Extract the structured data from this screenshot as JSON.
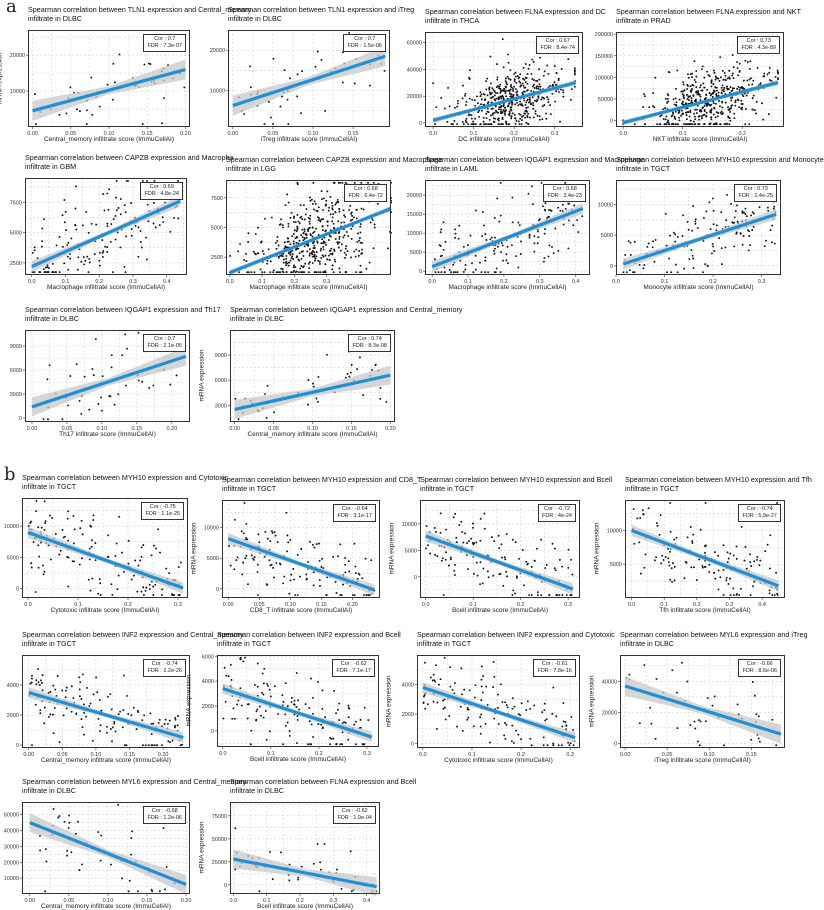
{
  "labels": {
    "a": "a",
    "b": "b"
  },
  "chart_data": [
    {
      "type": "scatter",
      "title": [
        "Spearman correlation between TLN1 expression and Central_memory",
        "infiltrate in DLBC"
      ],
      "cor": "Cor : 0.7",
      "fdr": "FDR : 7.3e-07",
      "xlabel": "Central_memory infiltrate score (ImmuCellAI)",
      "ylabel": "mRNA expression",
      "xticks": [
        0,
        0.05,
        0.1,
        0.15,
        0.2
      ],
      "xticklabels": [
        "0.00",
        "0.05",
        "0.10",
        "0.15",
        "0.20"
      ],
      "yticks": [
        10000,
        20000
      ],
      "yticklabels": [
        "10000",
        "20000"
      ],
      "xlim": [
        -0.006,
        0.206
      ],
      "ylim": [
        0,
        27000
      ],
      "fit": [
        [
          0,
          4500
        ],
        [
          0.2,
          16000
        ]
      ],
      "n": 47
    },
    {
      "type": "scatter",
      "title": [
        "Spearman correlation between TLN1 expression and iTreg",
        "infiltrate in DLBC"
      ],
      "cor": "Cor : 0.7",
      "fdr": "FDR : 1.5e-06",
      "xlabel": "iTreg infiltrate score (ImmuCellAI)",
      "ylabel": "",
      "xticks": [
        0,
        0.05,
        0.1,
        0.15
      ],
      "xticklabels": [
        "0.00",
        "0.05",
        "0.10",
        "0.15"
      ],
      "yticks": [
        10000,
        20000
      ],
      "yticklabels": [
        "10000",
        "20000"
      ],
      "xlim": [
        -0.006,
        0.196
      ],
      "ylim": [
        1000,
        25000
      ],
      "fit": [
        [
          0,
          6300
        ],
        [
          0.19,
          18500
        ]
      ],
      "n": 47
    },
    {
      "type": "scatter",
      "title": [
        "Spearman correlation between FLNA expression and DC",
        "infiltrate in THCA"
      ],
      "cor": "Cor : 0.67",
      "fdr": "FDR : 8.4e-74",
      "xlabel": "DC infiltrate score (ImmuCellAI)",
      "ylabel": "",
      "xticks": [
        0,
        0.1,
        0.2,
        0.3
      ],
      "xticklabels": [
        "0.0",
        "0.1",
        "0.2",
        "0.3"
      ],
      "yticks": [
        0,
        20000,
        40000,
        60000
      ],
      "yticklabels": [
        "0",
        "20000",
        "40000",
        "60000"
      ],
      "xlim": [
        -0.02,
        0.37
      ],
      "ylim": [
        -3000,
        68000
      ],
      "fit": [
        [
          0,
          2000
        ],
        [
          0.35,
          30000
        ]
      ],
      "n": 500
    },
    {
      "type": "scatter",
      "title": [
        "Spearman correlation between FLNA expression and NKT",
        "infiltrate in PRAD"
      ],
      "cor": "Cor : 0.73",
      "fdr": "FDR : 4.3e-89",
      "xlabel": "NKT infiltrate score (ImmuCellAI)",
      "ylabel": "",
      "xticks": [
        0,
        0.1,
        0.2
      ],
      "xticklabels": [
        "0.0",
        "0.1",
        "0.2"
      ],
      "yticks": [
        0,
        50000,
        100000,
        150000,
        200000
      ],
      "yticklabels": [
        "0",
        "50000",
        "100000",
        "150000",
        "200000"
      ],
      "xlim": [
        -0.012,
        0.27
      ],
      "ylim": [
        -15000,
        205000
      ],
      "fit": [
        [
          0,
          -5000
        ],
        [
          0.26,
          88000
        ]
      ],
      "n": 490
    },
    {
      "type": "scatter",
      "title": [
        "Spearman correlation between CAPZB expression and Macropha",
        "infiltrate in GBM"
      ],
      "cor": "Cor : 0.69",
      "fdr": "FDR : 4.8e-24",
      "xlabel": "Macrophage infiltrate score (ImmuCellAI)",
      "ylabel": "mRNA expression",
      "xticks": [
        0,
        0.1,
        0.2,
        0.3,
        0.4
      ],
      "xticklabels": [
        "0.0",
        "0.1",
        "0.2",
        "0.3",
        "0.4"
      ],
      "yticks": [
        2500,
        5000,
        7500
      ],
      "yticklabels": [
        "2500",
        "5000",
        "7500"
      ],
      "xlim": [
        -0.02,
        0.46
      ],
      "ylim": [
        1500,
        9500
      ],
      "fit": [
        [
          0,
          2200
        ],
        [
          0.44,
          7600
        ]
      ],
      "n": 160
    },
    {
      "type": "scatter",
      "title": [
        "Spearman correlation between CAPZB expression and Macrophage",
        "infiltrate in LGG"
      ],
      "cor": "Cor : 0.68",
      "fdr": "FDR : 6.4e-72",
      "xlabel": "Macrophage infiltrate score (ImmuCellAI)",
      "ylabel": "",
      "xticks": [
        0,
        0.1,
        0.2,
        0.3
      ],
      "xticklabels": [
        "0.0",
        "0.1",
        "0.2",
        "0.3"
      ],
      "yticks": [
        2500,
        5000,
        7500
      ],
      "yticklabels": [
        "2500",
        "5000",
        "7500"
      ],
      "xlim": [
        -0.012,
        0.5
      ],
      "ylim": [
        1000,
        9000
      ],
      "fit": [
        [
          0,
          1200
        ],
        [
          0.5,
          6600
        ]
      ],
      "n": 500
    },
    {
      "type": "scatter",
      "title": [
        "Spearman correlation between IQGAP1 expression and Macrophage",
        "infiltrate in LAML"
      ],
      "cor": "Cor : 0.68",
      "fdr": "FDR : 3.4e-23",
      "xlabel": "Macrophage infiltrate score (ImmuCellAI)",
      "ylabel": "",
      "xticks": [
        0,
        0.1,
        0.2,
        0.3,
        0.4
      ],
      "xticklabels": [
        "0.0",
        "0.1",
        "0.2",
        "0.3",
        "0.4"
      ],
      "yticks": [
        0,
        5000,
        10000,
        15000,
        20000
      ],
      "yticklabels": [
        "0",
        "5000",
        "10000",
        "15000",
        "20000"
      ],
      "xlim": [
        -0.02,
        0.44
      ],
      "ylim": [
        -1000,
        24000
      ],
      "fit": [
        [
          0,
          1200
        ],
        [
          0.42,
          16500
        ]
      ],
      "n": 170
    },
    {
      "type": "scatter",
      "title": [
        "Spearman correlation between MYH10 expression and Monocyte",
        "infiltrate in TGCT"
      ],
      "cor": "Cor : 0.73",
      "fdr": "FDR : 1.4e-25",
      "xlabel": "Monocyte infiltrate score (ImmuCellAI)",
      "ylabel": "",
      "xticks": [
        0,
        0.1,
        0.2,
        0.3
      ],
      "xticklabels": [
        "0.0",
        "0.1",
        "0.2",
        "0.3"
      ],
      "yticks": [
        0,
        5000,
        10000
      ],
      "yticklabels": [
        "0",
        "5000",
        "10000"
      ],
      "xlim": [
        0,
        0.34
      ],
      "ylim": [
        -1500,
        14000
      ],
      "fit": [
        [
          0.015,
          300
        ],
        [
          0.33,
          8400
        ]
      ],
      "n": 150
    },
    {
      "type": "scatter",
      "title": [
        "Spearman correlation between IQGAP1 expression and Th17",
        "infiltrate in DLBC"
      ],
      "cor": "Cor : 0.7",
      "fdr": "FDR : 2.1e-05",
      "xlabel": "Th17 infiltrate score (ImmuCellAI)",
      "ylabel": "mRNA expression",
      "xticks": [
        0,
        0.05,
        0.1,
        0.15,
        0.2
      ],
      "xticklabels": [
        "0.00",
        "0.05",
        "0.10",
        "0.15",
        "0.20"
      ],
      "yticks": [
        0,
        3000,
        6000,
        9000
      ],
      "yticklabels": [
        "0",
        "3000",
        "6000",
        "9000"
      ],
      "xlim": [
        -0.01,
        0.226
      ],
      "ylim": [
        -500,
        11000
      ],
      "fit": [
        [
          0,
          1400
        ],
        [
          0.22,
          7700
        ]
      ],
      "n": 47
    },
    {
      "type": "scatter",
      "title": [
        "Spearman correlation between IQGAP1 expression and Central_memory",
        "infiltrate in DLBC"
      ],
      "cor": "Cor : 0.74",
      "fdr": "FDR : 8.3e-08",
      "xlabel": "Central_memory infiltrate score (ImmuCellAI)",
      "ylabel": "mRNA expression",
      "xticks": [
        0,
        0.05,
        0.1,
        0.15,
        0.2
      ],
      "xticklabels": [
        "0.00",
        "0.05",
        "0.10",
        "0.15",
        "0.20"
      ],
      "yticks": [
        3000,
        6000,
        9000
      ],
      "yticklabels": [
        "3000",
        "6000",
        "9000"
      ],
      "xlim": [
        -0.006,
        0.206
      ],
      "ylim": [
        1000,
        12000
      ],
      "fit": [
        [
          0,
          2500
        ],
        [
          0.2,
          6600
        ]
      ],
      "n": 47
    },
    {
      "type": "scatter",
      "title": [
        "Spearman correlation between MYH10 expression and Cytotoxic",
        "infiltrate in TGCT"
      ],
      "cor": "Cor : -0.75",
      "fdr": "FDR : 1.1e-25",
      "xlabel": "Cytotoxic infiltrate score (ImmuCellAI)",
      "ylabel": "mRNA expression",
      "xticks": [
        0,
        0.1,
        0.2,
        0.3
      ],
      "xticklabels": [
        "0.0",
        "0.1",
        "0.2",
        "0.3"
      ],
      "yticks": [
        0,
        5000,
        10000
      ],
      "yticklabels": [
        "0",
        "5000",
        "10000"
      ],
      "xlim": [
        -0.012,
        0.32
      ],
      "ylim": [
        -1500,
        14500
      ],
      "fit": [
        [
          0,
          9000
        ],
        [
          0.31,
          100
        ]
      ],
      "n": 150
    },
    {
      "type": "scatter",
      "title": [
        "Spearman correlation between MYH10 expression and CD8_T",
        "infiltrate in TGCT"
      ],
      "cor": "Cor : -0.64",
      "fdr": "FDR : 3.1e-17",
      "xlabel": "CD8_T infiltrate score (ImmuCellAI)",
      "ylabel": "mRNA expression",
      "xticks": [
        0,
        0.05,
        0.1,
        0.15,
        0.2
      ],
      "xticklabels": [
        "0.00",
        "0.05",
        "0.10",
        "0.15",
        "0.20"
      ],
      "yticks": [
        0,
        5000,
        10000
      ],
      "yticklabels": [
        "0",
        "5000",
        "10000"
      ],
      "xlim": [
        -0.01,
        0.244
      ],
      "ylim": [
        -1500,
        14500
      ],
      "fit": [
        [
          0,
          8200
        ],
        [
          0.235,
          -200
        ]
      ],
      "n": 150
    },
    {
      "type": "scatter",
      "title": [
        "Spearman correlation between MYH10 expression and Bcell",
        "infiltrate in TGCT"
      ],
      "cor": "Cor : -0.72",
      "fdr": "FDR : 4e-24",
      "xlabel": "Bcell infiltrate score (ImmuCellAI)",
      "ylabel": "mRNA expression",
      "xticks": [
        0,
        0.1,
        0.2,
        0.3
      ],
      "xticklabels": [
        "0.0",
        "0.1",
        "0.2",
        "0.3"
      ],
      "yticks": [
        0,
        5000,
        10000
      ],
      "yticklabels": [
        "0",
        "5000",
        "10000"
      ],
      "xlim": [
        -0.012,
        0.325
      ],
      "ylim": [
        -4000,
        14500
      ],
      "fit": [
        [
          0,
          7700
        ],
        [
          0.31,
          -2300
        ]
      ],
      "n": 150
    },
    {
      "type": "scatter",
      "title": [
        "Spearman correlation between MYH10 expression and Tfh",
        "infiltrate in TGCT"
      ],
      "cor": "Cor : -0.74",
      "fdr": "FDR : 5.9e-27",
      "xlabel": "Tfh infiltrate score (ImmuCellAI)",
      "ylabel": "mRNA expression",
      "xticks": [
        0,
        0.1,
        0.2,
        0.3,
        0.4
      ],
      "xticklabels": [
        "0.0",
        "0.1",
        "0.2",
        "0.3",
        "0.4"
      ],
      "yticks": [
        5000,
        10000
      ],
      "yticklabels": [
        "5000",
        "10000"
      ],
      "xlim": [
        -0.02,
        0.47
      ],
      "ylim": [
        0,
        14500
      ],
      "fit": [
        [
          0,
          10000
        ],
        [
          0.45,
          1800
        ]
      ],
      "n": 150
    },
    {
      "type": "scatter",
      "title": [
        "Spearman correlation between INF2 expression and Central_memory",
        "infiltrate in TGCT"
      ],
      "cor": "Cor : -0.74",
      "fdr": "FDR : 2.2e-26",
      "xlabel": "Central_memory infiltrate score (ImmuCellAI)",
      "ylabel": "mRNA expression",
      "xticks": [
        0,
        0.05,
        0.1,
        0.15,
        0.2
      ],
      "xticklabels": [
        "0.00",
        "0.05",
        "0.10",
        "0.15",
        "0.20"
      ],
      "yticks": [
        0,
        2000,
        4000
      ],
      "yticklabels": [
        "0",
        "2000",
        "4000"
      ],
      "xlim": [
        -0.01,
        0.24
      ],
      "ylim": [
        -200,
        6000
      ],
      "fit": [
        [
          0,
          3500
        ],
        [
          0.23,
          500
        ]
      ],
      "n": 150
    },
    {
      "type": "scatter",
      "title": [
        "Spearman correlation between INF2 expression and Bcell",
        "infiltrate in TGCT"
      ],
      "cor": "Cor : -0.62",
      "fdr": "FDR : 7.1e-17",
      "xlabel": "Bcell infiltrate score (ImmuCellAI)",
      "ylabel": "mRNA expression",
      "xticks": [
        0,
        0.1,
        0.2,
        0.3
      ],
      "xticklabels": [
        "0.0",
        "0.1",
        "0.2",
        "0.3"
      ],
      "yticks": [
        0,
        2000,
        4000,
        6000
      ],
      "yticklabels": [
        "0",
        "2000",
        "4000",
        "6000"
      ],
      "xlim": [
        -0.012,
        0.325
      ],
      "ylim": [
        -1300,
        6100
      ],
      "fit": [
        [
          0,
          3400
        ],
        [
          0.31,
          -500
        ]
      ],
      "n": 150
    },
    {
      "type": "scatter",
      "title": [
        "Spearman correlation between INF2 expression and Cytotoxic",
        "infiltrate in TGCT"
      ],
      "cor": "Cor : -0.61",
      "fdr": "FDR : 7.8e-16",
      "xlabel": "Cytotoxic infiltrate score (ImmuCellAI)",
      "ylabel": "mRNA expression",
      "xticks": [
        0,
        0.1,
        0.2,
        0.3
      ],
      "xticklabels": [
        "0.0",
        "0.1",
        "0.2",
        "0.3"
      ],
      "yticks": [
        0,
        2000,
        4000
      ],
      "yticklabels": [
        "0",
        "2000",
        "4000"
      ],
      "xlim": [
        -0.012,
        0.32
      ],
      "ylim": [
        -300,
        6000
      ],
      "fit": [
        [
          0,
          3800
        ],
        [
          0.31,
          400
        ]
      ],
      "n": 150
    },
    {
      "type": "scatter",
      "title": [
        "Spearman correlation between MYL6 expression and iTreg",
        "infiltrate in DLBC"
      ],
      "cor": "Cor : -0.66",
      "fdr": "FDR : 8.6e-06",
      "xlabel": "iTreg infiltrate score (ImmuCellAI)",
      "ylabel": "mRNA expression",
      "xticks": [
        0,
        0.05,
        0.1,
        0.15
      ],
      "xticklabels": [
        "0.00",
        "0.05",
        "0.10",
        "0.15"
      ],
      "yticks": [
        0,
        20000,
        40000
      ],
      "yticklabels": [
        "0",
        "20000",
        "40000"
      ],
      "xlim": [
        -0.006,
        0.19
      ],
      "ylim": [
        -3000,
        57000
      ],
      "fit": [
        [
          0,
          37000
        ],
        [
          0.185,
          6000
        ]
      ],
      "n": 47
    },
    {
      "type": "scatter",
      "title": [
        "Spearman correlation between MYL6 expression and Central_memory",
        "infiltrate in DLBC"
      ],
      "cor": "Cor : -0.68",
      "fdr": "FDR : 1.2e-06",
      "xlabel": "Central_memory infiltrate score (ImmuCellAI)",
      "ylabel": "mRNA expression",
      "xticks": [
        0,
        0.05,
        0.1,
        0.15,
        0.2
      ],
      "xticklabels": [
        "0.00",
        "0.05",
        "0.10",
        "0.15",
        "0.20"
      ],
      "yticks": [
        10000,
        20000,
        30000,
        40000,
        50000
      ],
      "yticklabels": [
        "10000",
        "20000",
        "30000",
        "40000",
        "50000"
      ],
      "xlim": [
        -0.01,
        0.205
      ],
      "ylim": [
        0,
        58000
      ],
      "fit": [
        [
          0,
          45000
        ],
        [
          0.2,
          6000
        ]
      ],
      "n": 47
    },
    {
      "type": "scatter",
      "title": [
        "Spearman correlation between FLNA expression and Bcell",
        "infiltrate in DLBC"
      ],
      "cor": "Cor : -0.62",
      "fdr": "FDR : 1.9e-04",
      "xlabel": "Bcell infiltrate score (ImmuCellAI)",
      "ylabel": "mRNA expression",
      "xticks": [
        0,
        0.1,
        0.2,
        0.3,
        0.4
      ],
      "xticklabels": [
        "0.0",
        "0.1",
        "0.2",
        "0.3",
        "0.4"
      ],
      "yticks": [
        0,
        25000,
        50000,
        75000
      ],
      "yticklabels": [
        "0",
        "25000",
        "50000",
        "75000"
      ],
      "xlim": [
        -0.01,
        0.44
      ],
      "ylim": [
        -10000,
        90000
      ],
      "fit": [
        [
          0,
          28000
        ],
        [
          0.43,
          -2000
        ]
      ],
      "n": 47
    }
  ],
  "colors": {
    "fit_line": "#1f8fd6",
    "ci_band": "#c8c8c8",
    "points": "#111111"
  }
}
